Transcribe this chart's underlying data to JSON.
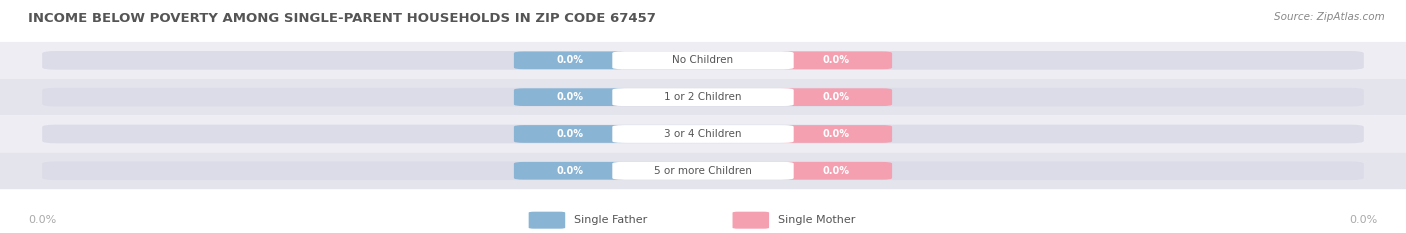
{
  "title": "INCOME BELOW POVERTY AMONG SINGLE-PARENT HOUSEHOLDS IN ZIP CODE 67457",
  "source": "Source: ZipAtlas.com",
  "categories": [
    "No Children",
    "1 or 2 Children",
    "3 or 4 Children",
    "5 or more Children"
  ],
  "single_father_values": [
    0.0,
    0.0,
    0.0,
    0.0
  ],
  "single_mother_values": [
    0.0,
    0.0,
    0.0,
    0.0
  ],
  "father_color": "#8ab4d4",
  "mother_color": "#f4a0b0",
  "bar_bg_color": "#dcdce8",
  "row_bg_color_odd": "#ededf3",
  "row_bg_color_even": "#e4e4ec",
  "center_label_color": "#555555",
  "title_color": "#555555",
  "source_color": "#888888",
  "axis_label_color": "#aaaaaa",
  "figsize": [
    14.06,
    2.33
  ],
  "dpi": 100
}
